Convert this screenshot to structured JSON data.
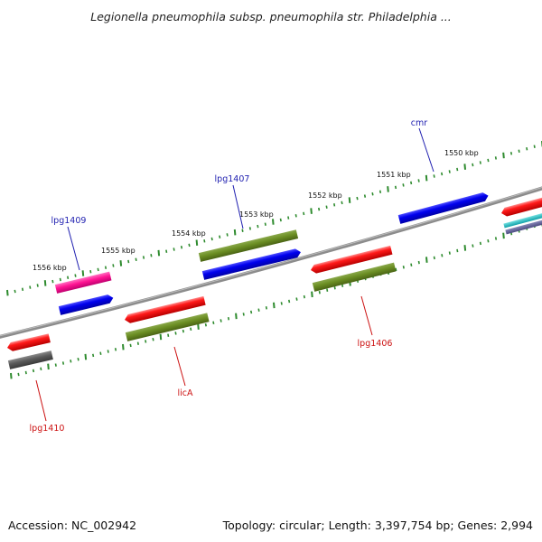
{
  "title": "Legionella pneumophila subsp. pneumophila str. Philadelphia ...",
  "footer": {
    "accession": "Accession: NC_002942",
    "summary": "Topology: circular; Length: 3,397,754 bp; Genes: 2,994"
  },
  "colors": {
    "backbone": "#8c8c8c",
    "tick": "#2e8b2e",
    "forward_label": "#1f1fb0",
    "reverse_label": "#cc1111"
  },
  "kbp_labels": [
    "1556 kbp",
    "1555 kbp",
    "1554 kbp",
    "1553 kbp",
    "1552 kbp",
    "1551 kbp",
    "1550 kbp"
  ],
  "genes": [
    {
      "name": "lpg1409",
      "strand": "forward",
      "color": "#1f1fb0"
    },
    {
      "name": "lpg1407",
      "strand": "forward",
      "color": "#1f1fb0"
    },
    {
      "name": "cmr",
      "strand": "forward",
      "color": "#1f1fb0"
    },
    {
      "name": "lpg1410",
      "strand": "reverse",
      "color": "#cc1111"
    },
    {
      "name": "licA",
      "strand": "reverse",
      "color": "#cc1111"
    },
    {
      "name": "lpg1406",
      "strand": "reverse",
      "color": "#cc1111"
    }
  ]
}
